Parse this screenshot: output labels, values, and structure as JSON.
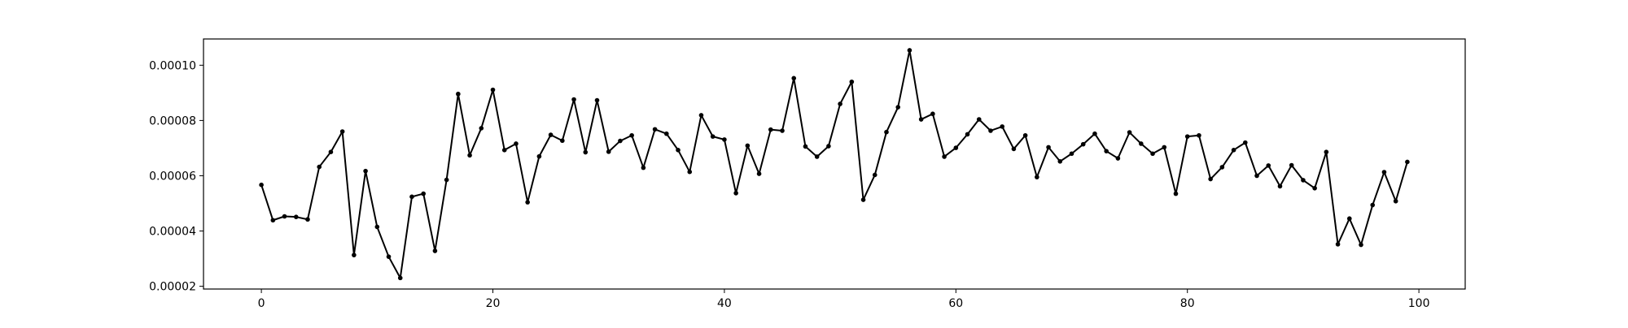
{
  "chart_data": {
    "type": "line",
    "title": "",
    "xlabel": "",
    "ylabel": "",
    "xlim": [
      -5,
      104
    ],
    "ylim": [
      1.9e-05,
      0.0001095
    ],
    "xticks": [
      0,
      20,
      40,
      60,
      80,
      100
    ],
    "xtick_labels": [
      "0",
      "20",
      "40",
      "60",
      "80",
      "100"
    ],
    "yticks": [
      2e-05,
      4e-05,
      6e-05,
      8e-05,
      0.0001
    ],
    "ytick_labels": [
      "0.00002",
      "0.00004",
      "0.00006",
      "0.00008",
      "0.00010"
    ],
    "grid": false,
    "legend": "none",
    "colors": {
      "line": "#000000",
      "marker": "#000000",
      "axes": "#000000",
      "background": "#ffffff"
    },
    "series": [
      {
        "marker": "dot",
        "x": [
          0,
          1,
          2,
          3,
          4,
          5,
          6,
          7,
          8,
          9,
          10,
          11,
          12,
          13,
          14,
          15,
          16,
          17,
          18,
          19,
          20,
          21,
          22,
          23,
          24,
          25,
          26,
          27,
          28,
          29,
          30,
          31,
          32,
          33,
          34,
          35,
          36,
          37,
          38,
          39,
          40,
          41,
          42,
          43,
          44,
          45,
          46,
          47,
          48,
          49,
          50,
          51,
          52,
          53,
          54,
          55,
          56,
          57,
          58,
          59,
          60,
          61,
          62,
          63,
          64,
          65,
          66,
          67,
          68,
          69,
          70,
          71,
          72,
          73,
          74,
          75,
          76,
          77,
          78,
          79,
          80,
          81,
          82,
          83,
          84,
          85,
          86,
          87,
          88,
          89,
          90,
          91,
          92,
          93,
          94,
          95,
          96,
          97,
          98,
          99
        ],
        "values": [
          5.67e-05,
          4.39e-05,
          4.53e-05,
          4.51e-05,
          4.42e-05,
          6.32e-05,
          6.86e-05,
          7.6e-05,
          3.13e-05,
          6.17e-05,
          4.15e-05,
          3.07e-05,
          2.3e-05,
          5.24e-05,
          5.35e-05,
          3.28e-05,
          5.85e-05,
          8.96e-05,
          6.74e-05,
          7.72e-05,
          9.11e-05,
          6.93e-05,
          7.16e-05,
          5.04e-05,
          6.7e-05,
          7.48e-05,
          7.27e-05,
          8.76e-05,
          6.85e-05,
          8.73e-05,
          6.87e-05,
          7.26e-05,
          7.46e-05,
          6.29e-05,
          7.68e-05,
          7.52e-05,
          6.93e-05,
          6.14e-05,
          8.19e-05,
          7.42e-05,
          7.31e-05,
          5.37e-05,
          7.09e-05,
          6.07e-05,
          7.67e-05,
          7.63e-05,
          9.53e-05,
          7.06e-05,
          6.69e-05,
          7.07e-05,
          8.6e-05,
          9.4e-05,
          5.13e-05,
          6.03e-05,
          7.58e-05,
          8.48e-05,
          0.0001054,
          8.04e-05,
          8.24e-05,
          6.69e-05,
          7.01e-05,
          7.5e-05,
          8.04e-05,
          7.63e-05,
          7.78e-05,
          6.97e-05,
          7.46e-05,
          5.95e-05,
          7.03e-05,
          6.52e-05,
          6.8e-05,
          7.14e-05,
          7.52e-05,
          6.89e-05,
          6.63e-05,
          7.57e-05,
          7.16e-05,
          6.8e-05,
          7.03e-05,
          5.35e-05,
          7.42e-05,
          7.46e-05,
          5.88e-05,
          6.31e-05,
          6.93e-05,
          7.2e-05,
          6e-05,
          6.37e-05,
          5.62e-05,
          6.38e-05,
          5.84e-05,
          5.55e-05,
          6.86e-05,
          3.52e-05,
          4.45e-05,
          3.5e-05,
          4.94e-05,
          6.13e-05,
          5.08e-05,
          6.5e-05
        ]
      }
    ]
  }
}
